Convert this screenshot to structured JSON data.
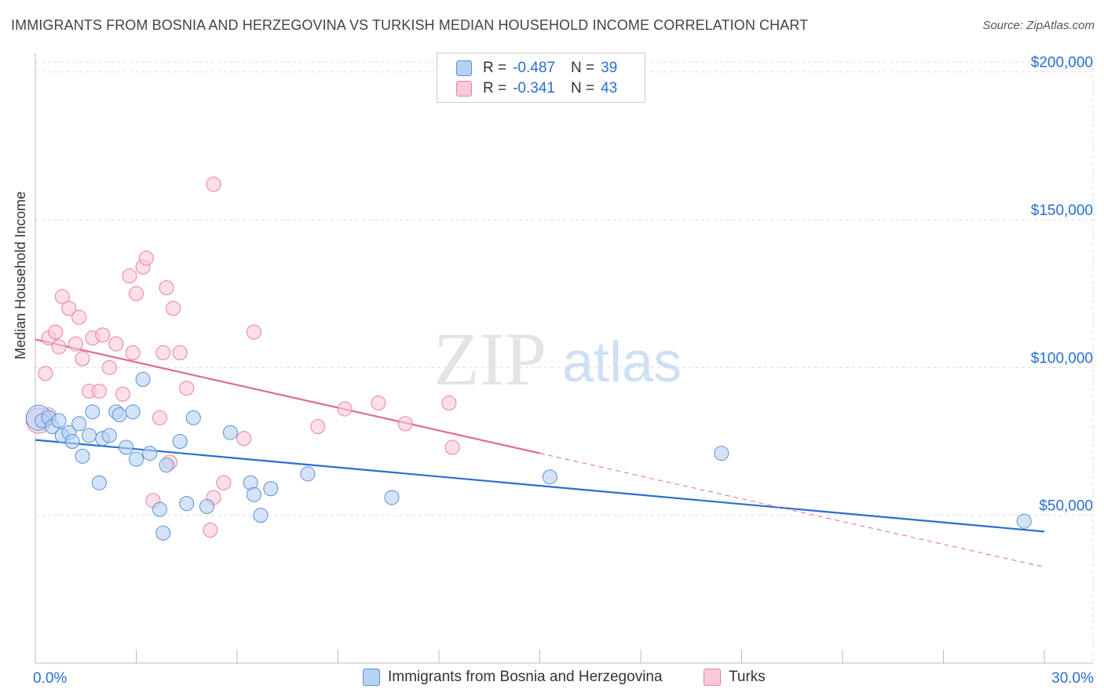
{
  "title": "IMMIGRANTS FROM BOSNIA AND HERZEGOVINA VS TURKISH MEDIAN HOUSEHOLD INCOME CORRELATION CHART",
  "source": "Source: ZipAtlas.com",
  "watermark": {
    "zip": "ZIP",
    "atlas": "atlas"
  },
  "legend": {
    "rows": [
      {
        "r_label": "R =",
        "r_value": "-0.487",
        "n_label": "N =",
        "n_value": "39"
      },
      {
        "r_label": "R =",
        "r_value": "-0.341",
        "n_label": "N =",
        "n_value": "43"
      }
    ]
  },
  "bottom_legend": [
    "Immigrants from Bosnia and Herzegovina",
    "Turks"
  ],
  "colors": {
    "blue_fill": "#b7d2f4",
    "blue_stroke": "#5b8fd8",
    "blue_line": "#2a6ed0",
    "pink_fill": "#fbc9d8",
    "pink_stroke": "#e7809f",
    "pink_line": "#e06a93",
    "tick_text": "#2a6ed0",
    "grid": "#dddddd"
  },
  "chart_data": {
    "type": "scatter",
    "title": "IMMIGRANTS FROM BOSNIA AND HERZEGOVINA VS TURKISH MEDIAN HOUSEHOLD INCOME CORRELATION CHART",
    "xlabel": "",
    "ylabel": "Median Household Income",
    "xlim": [
      0,
      30
    ],
    "ylim": [
      0,
      210000
    ],
    "x_tick_labels": [
      "0.0%",
      "30.0%"
    ],
    "y_ticks": [
      {
        "value": 50000,
        "label": "$50,000"
      },
      {
        "value": 100000,
        "label": "$100,000"
      },
      {
        "value": 150000,
        "label": "$150,000"
      },
      {
        "value": 200000,
        "label": "$200,000"
      }
    ],
    "series": [
      {
        "name": "Immigrants from Bosnia and Herzegovina",
        "color": "blue",
        "points": [
          [
            0.1,
            83000
          ],
          [
            0.2,
            82000
          ],
          [
            0.4,
            83000
          ],
          [
            0.5,
            80000
          ],
          [
            0.7,
            82000
          ],
          [
            0.8,
            77000
          ],
          [
            1.0,
            78000
          ],
          [
            1.1,
            75000
          ],
          [
            1.3,
            81000
          ],
          [
            1.4,
            70000
          ],
          [
            1.6,
            77000
          ],
          [
            1.7,
            85000
          ],
          [
            1.9,
            61000
          ],
          [
            2.0,
            76000
          ],
          [
            2.2,
            77000
          ],
          [
            2.4,
            85000
          ],
          [
            2.5,
            84000
          ],
          [
            2.7,
            73000
          ],
          [
            2.9,
            85000
          ],
          [
            3.0,
            69000
          ],
          [
            3.2,
            96000
          ],
          [
            3.4,
            71000
          ],
          [
            3.7,
            52000
          ],
          [
            3.8,
            44000
          ],
          [
            3.9,
            67000
          ],
          [
            4.3,
            75000
          ],
          [
            4.5,
            54000
          ],
          [
            4.7,
            83000
          ],
          [
            5.1,
            53000
          ],
          [
            5.8,
            78000
          ],
          [
            6.4,
            61000
          ],
          [
            6.5,
            57000
          ],
          [
            6.7,
            50000
          ],
          [
            7.0,
            59000
          ],
          [
            8.1,
            64000
          ],
          [
            10.6,
            56000
          ],
          [
            15.3,
            63000
          ],
          [
            20.4,
            71000
          ],
          [
            29.4,
            48000
          ]
        ]
      },
      {
        "name": "Turks",
        "color": "pink",
        "points": [
          [
            0.1,
            82000
          ],
          [
            0.3,
            98000
          ],
          [
            0.4,
            110000
          ],
          [
            0.6,
            112000
          ],
          [
            0.7,
            107000
          ],
          [
            0.8,
            124000
          ],
          [
            1.0,
            120000
          ],
          [
            1.2,
            108000
          ],
          [
            1.3,
            117000
          ],
          [
            1.4,
            103000
          ],
          [
            1.6,
            92000
          ],
          [
            1.7,
            110000
          ],
          [
            1.9,
            92000
          ],
          [
            2.0,
            111000
          ],
          [
            2.2,
            100000
          ],
          [
            2.4,
            108000
          ],
          [
            2.6,
            91000
          ],
          [
            2.8,
            131000
          ],
          [
            2.9,
            105000
          ],
          [
            3.0,
            125000
          ],
          [
            3.2,
            134000
          ],
          [
            3.3,
            137000
          ],
          [
            3.5,
            55000
          ],
          [
            3.7,
            83000
          ],
          [
            3.8,
            105000
          ],
          [
            3.9,
            127000
          ],
          [
            4.0,
            68000
          ],
          [
            4.1,
            120000
          ],
          [
            4.3,
            105000
          ],
          [
            4.5,
            93000
          ],
          [
            5.2,
            45000
          ],
          [
            5.3,
            56000
          ],
          [
            5.3,
            162000
          ],
          [
            5.6,
            61000
          ],
          [
            6.2,
            76000
          ],
          [
            6.5,
            112000
          ],
          [
            8.4,
            80000
          ],
          [
            9.2,
            86000
          ],
          [
            10.2,
            88000
          ],
          [
            11.0,
            81000
          ],
          [
            12.3,
            88000
          ],
          [
            12.4,
            73000
          ],
          [
            0.4,
            84000
          ]
        ]
      }
    ],
    "trendlines": [
      {
        "series": "Immigrants from Bosnia and Herzegovina",
        "x": [
          0,
          30
        ],
        "y": [
          75500,
          44500
        ],
        "style": "solid"
      },
      {
        "series": "Turks",
        "x": [
          0,
          15
        ],
        "y": [
          109500,
          71000
        ],
        "style": "solid"
      },
      {
        "series": "Turks",
        "x": [
          15,
          30
        ],
        "y": [
          71000,
          32500
        ],
        "style": "dashed"
      }
    ]
  }
}
